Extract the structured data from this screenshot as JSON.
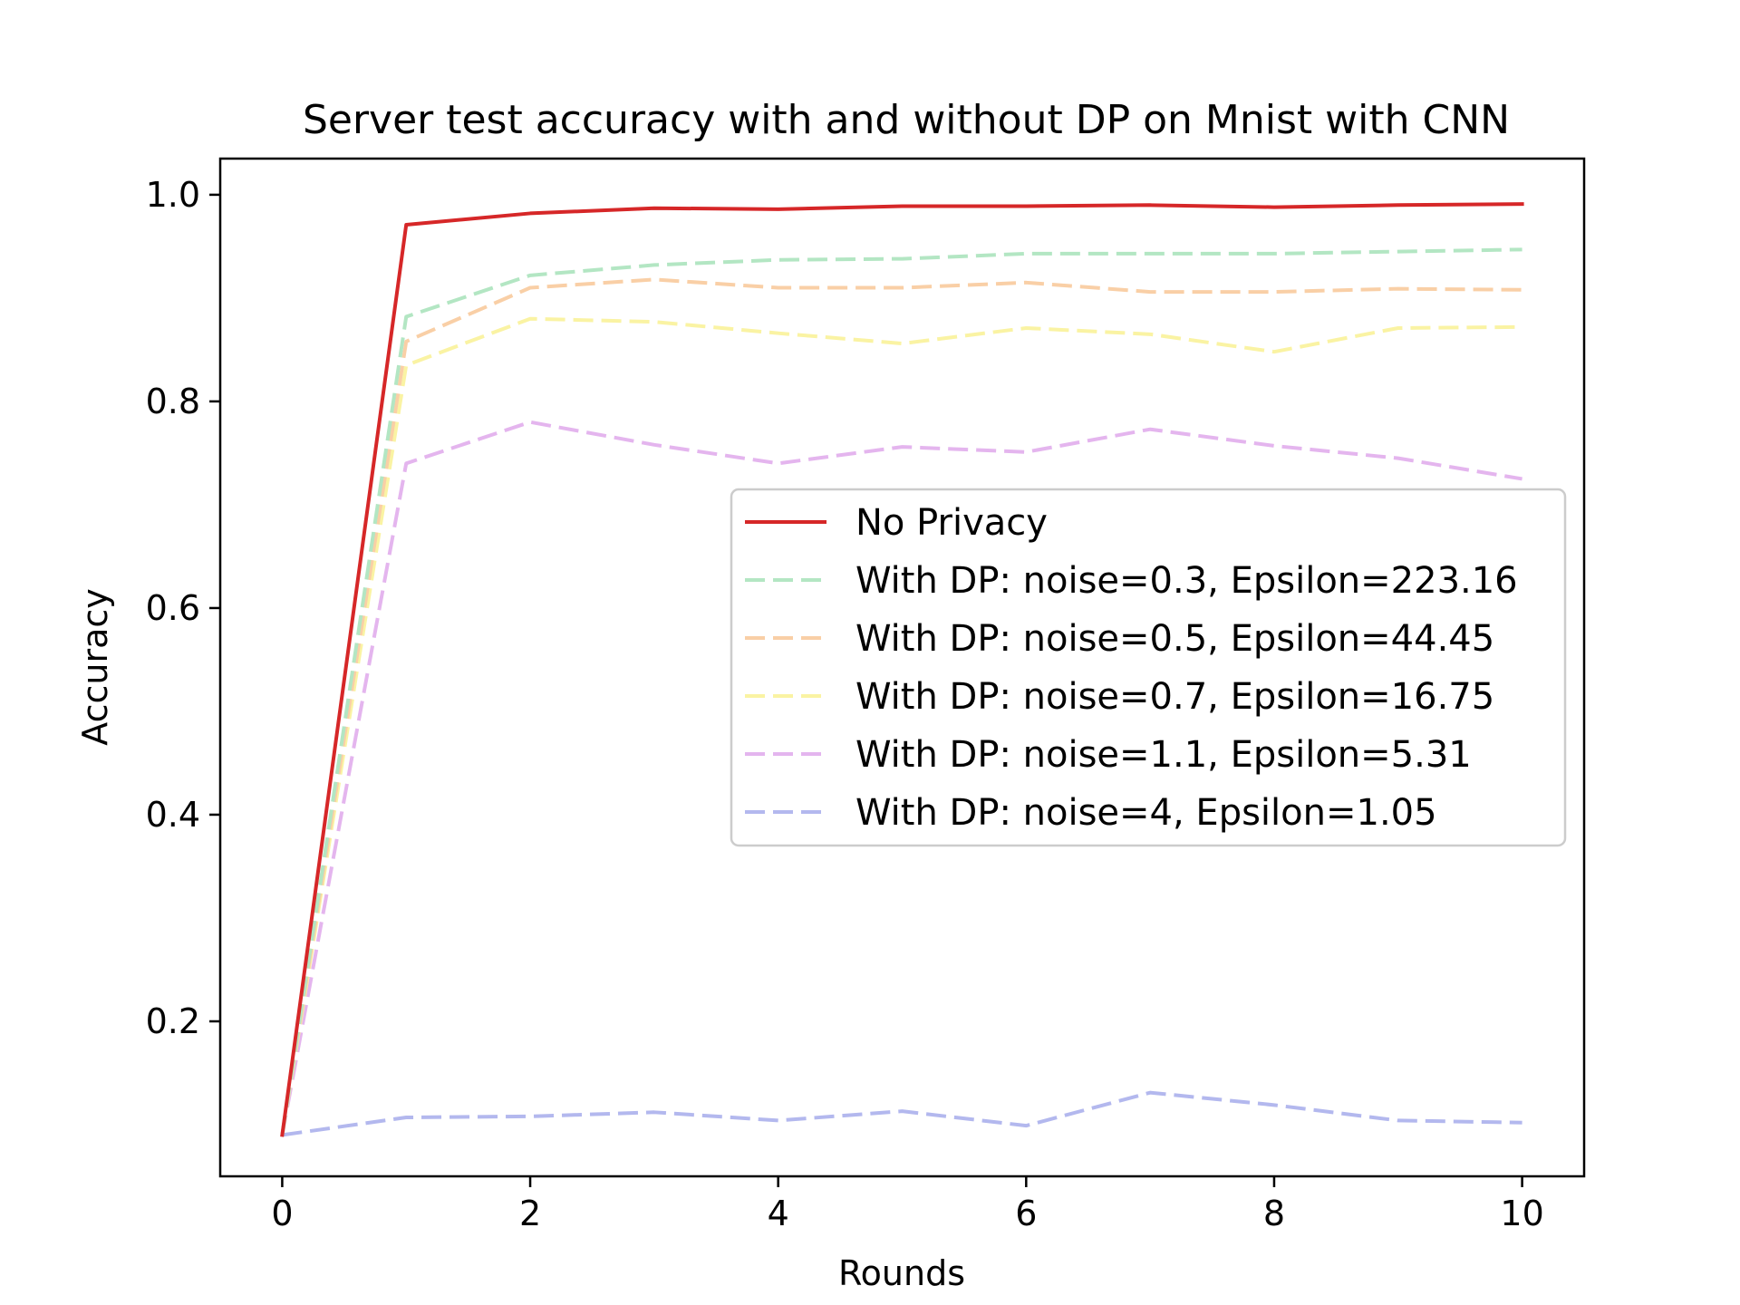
{
  "chart_data": {
    "type": "line",
    "title": "Server test accuracy with and without DP on Mnist with CNN",
    "xlabel": "Rounds",
    "ylabel": "Accuracy",
    "xlim": [
      -0.5,
      10.5
    ],
    "ylim": [
      0.05,
      1.035
    ],
    "xticks": [
      0,
      2,
      4,
      6,
      8,
      10
    ],
    "yticks": [
      0.2,
      0.4,
      0.6,
      0.8,
      1.0
    ],
    "xtick_labels": [
      "0",
      "2",
      "4",
      "6",
      "8",
      "10"
    ],
    "ytick_labels": [
      "0.2",
      "0.4",
      "0.6",
      "0.8",
      "1.0"
    ],
    "grid": false,
    "legend_position": "center-right",
    "x": [
      0,
      1,
      2,
      3,
      4,
      5,
      6,
      7,
      8,
      9,
      10
    ],
    "series": [
      {
        "name": "No Privacy",
        "color": "#d62728",
        "style": "solid",
        "values": [
          0.09,
          0.971,
          0.982,
          0.987,
          0.986,
          0.989,
          0.989,
          0.99,
          0.988,
          0.99,
          0.991
        ]
      },
      {
        "name": "With DP: noise=0.3, Epsilon=223.16",
        "color": "#b3e6c3",
        "style": "dashed",
        "values": [
          0.09,
          0.882,
          0.922,
          0.932,
          0.937,
          0.938,
          0.943,
          0.943,
          0.943,
          0.945,
          0.947
        ]
      },
      {
        "name": "With DP: noise=0.5, Epsilon=44.45",
        "color": "#f9cfa6",
        "style": "dashed",
        "values": [
          0.09,
          0.858,
          0.91,
          0.918,
          0.91,
          0.91,
          0.915,
          0.906,
          0.906,
          0.909,
          0.908
        ]
      },
      {
        "name": "With DP: noise=0.7, Epsilon=16.75",
        "color": "#faf3a3",
        "style": "dashed",
        "values": [
          0.09,
          0.835,
          0.88,
          0.877,
          0.866,
          0.856,
          0.871,
          0.865,
          0.848,
          0.871,
          0.872
        ]
      },
      {
        "name": "With DP: noise=1.1, Epsilon=5.31",
        "color": "#e4b5ee",
        "style": "dashed",
        "values": [
          0.09,
          0.74,
          0.78,
          0.758,
          0.74,
          0.756,
          0.751,
          0.773,
          0.757,
          0.745,
          0.725
        ]
      },
      {
        "name": "With DP: noise=4, Epsilon=1.05",
        "color": "#b3b8ee",
        "style": "dashed",
        "values": [
          0.09,
          0.107,
          0.108,
          0.112,
          0.104,
          0.113,
          0.099,
          0.131,
          0.119,
          0.104,
          0.102
        ]
      }
    ]
  }
}
